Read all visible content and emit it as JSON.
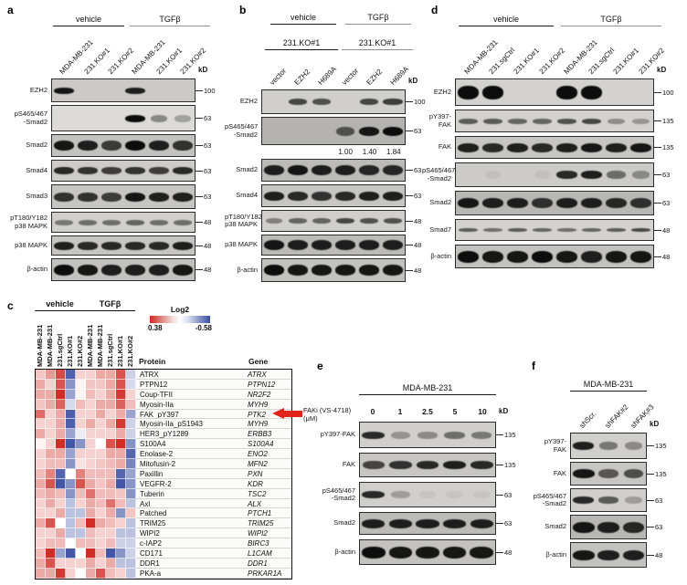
{
  "accent": {
    "arrow_color": "#e1251b"
  },
  "panels": {
    "a": {
      "letter": "a",
      "kd": "kD",
      "groups": [
        "vehicle",
        "TGFβ"
      ],
      "lanes": [
        "MDA-MB-231",
        "231.KO#1",
        "231.KO#2",
        "MDA-MB-231",
        "231.KO#1",
        "231.KO#2"
      ],
      "rows": [
        {
          "protein": "EZH2",
          "mw": "100",
          "bands": [
            0.95,
            0,
            0,
            0.9,
            0,
            0
          ]
        },
        {
          "protein": "pS465/467\n-Smad2",
          "mw": "63",
          "bands": [
            0,
            0,
            0,
            1,
            0.4,
            0.28
          ]
        },
        {
          "protein": "Smad2",
          "mw": "63",
          "bands": [
            0.95,
            0.9,
            0.75,
            1,
            0.9,
            0.8
          ]
        },
        {
          "protein": "Smad4",
          "mw": "63",
          "bands": [
            0.85,
            0.8,
            0.75,
            0.8,
            0.75,
            0.85
          ]
        },
        {
          "protein": "Smad3",
          "mw": "63",
          "bands": [
            0.8,
            0.8,
            0.75,
            0.95,
            0.9,
            0.9
          ]
        },
        {
          "protein": "pT180/Y182\np38 MAPK",
          "mw": "48",
          "bands": [
            0.45,
            0.5,
            0.5,
            0.55,
            0.5,
            0.5
          ]
        },
        {
          "protein": "p38 MAPK",
          "mw": "48",
          "bands": [
            0.9,
            0.85,
            0.85,
            0.85,
            0.85,
            0.9
          ]
        },
        {
          "protein": "β-actin",
          "mw": "48",
          "bands": [
            1,
            0.95,
            0.9,
            0.9,
            0.9,
            0.95
          ]
        }
      ]
    },
    "b": {
      "letter": "b",
      "kd": "kD",
      "groups": [
        "vehicle",
        "TGFβ"
      ],
      "subgroups": [
        "231.KO#1",
        "231.KO#1"
      ],
      "lanes": [
        "vector",
        "EZH2",
        "H689A",
        "vector",
        "EZH2",
        "H689A"
      ],
      "rows": [
        {
          "protein": "EZH2",
          "mw": "100",
          "bands": [
            0,
            0.7,
            0.65,
            0,
            0.7,
            0.75
          ]
        },
        {
          "protein": "pS465/467\n-Smad2",
          "mw": "63",
          "bands": [
            0,
            0,
            0,
            0.6,
            0.95,
            1
          ],
          "quant": [
            "",
            "",
            "",
            "1.00",
            "1.40",
            "1.84"
          ]
        },
        {
          "protein": "Smad2",
          "mw": "63",
          "bands": [
            0.9,
            0.95,
            0.9,
            0.9,
            0.85,
            0.85
          ]
        },
        {
          "protein": "Smad4",
          "mw": "63",
          "bands": [
            0.9,
            0.85,
            0.8,
            0.85,
            0.9,
            0.9
          ]
        },
        {
          "protein": "pT180/Y182\np38 MAPK",
          "mw": "48",
          "bands": [
            0.4,
            0.55,
            0.55,
            0.7,
            0.65,
            0.65
          ]
        },
        {
          "protein": "p38 MAPK",
          "mw": "48",
          "bands": [
            0.95,
            0.9,
            0.9,
            0.9,
            0.9,
            0.9
          ]
        },
        {
          "protein": "β-actin",
          "mw": "48",
          "bands": [
            1,
            0.95,
            0.95,
            0.95,
            0.95,
            0.95
          ]
        }
      ]
    },
    "d": {
      "letter": "d",
      "kd": "kD",
      "groups": [
        "vehicle",
        "TGFβ"
      ],
      "lanes": [
        "MDA-MB-231",
        "231.sgCtrl",
        "231.KO#1",
        "231.KO#2",
        "MDA-MB-231",
        "231.sgCtrl",
        "231.KO#1",
        "231.KO#2"
      ],
      "rows": [
        {
          "protein": "EZH2",
          "mw": "100",
          "bands": [
            1,
            1,
            0,
            0,
            1,
            1,
            0,
            0
          ]
        },
        {
          "protein": "pY397-FAK",
          "mw": "135",
          "bands": [
            0.6,
            0.6,
            0.55,
            0.55,
            0.65,
            0.7,
            0.35,
            0.3
          ]
        },
        {
          "protein": "FAK",
          "mw": "135",
          "bands": [
            0.9,
            0.85,
            0.9,
            0.85,
            0.9,
            0.95,
            0.9,
            0.95
          ]
        },
        {
          "protein": "pS465/467\n-Smad2",
          "mw": "63",
          "bands": [
            0,
            0.05,
            0,
            0.05,
            0.85,
            0.9,
            0.5,
            0.35
          ]
        },
        {
          "protein": "Smad2",
          "mw": "63",
          "bands": [
            0.95,
            0.9,
            0.9,
            0.8,
            0.9,
            0.9,
            0.85,
            0.8
          ]
        },
        {
          "protein": "Smad7",
          "mw": "48",
          "bands": [
            0.6,
            0.5,
            0.6,
            0.55,
            0.5,
            0.55,
            0.6,
            0.7
          ]
        },
        {
          "protein": "β-actin",
          "mw": "48",
          "bands": [
            1,
            0.95,
            0.95,
            1,
            0.95,
            0.9,
            0.95,
            0.95
          ]
        }
      ]
    },
    "e": {
      "letter": "e",
      "kd": "kD",
      "header": "MDA-MB-231",
      "treatment_label": "FAKi (VS-4718)\n(μM)",
      "doses": [
        "0",
        "1",
        "2.5",
        "5",
        "10"
      ],
      "rows": [
        {
          "protein": "pY397-FAK",
          "mw": "135",
          "bands": [
            0.85,
            0.3,
            0.35,
            0.5,
            0.45
          ]
        },
        {
          "protein": "FAK",
          "mw": "135",
          "bands": [
            0.7,
            0.8,
            0.85,
            0.9,
            0.85
          ]
        },
        {
          "protein": "pS465/467\n-Smad2",
          "mw": "63",
          "bands": [
            0.85,
            0.25,
            0.05,
            0.05,
            0.05
          ]
        },
        {
          "protein": "Smad2",
          "mw": "63",
          "bands": [
            0.9,
            0.9,
            0.9,
            0.9,
            0.9
          ]
        },
        {
          "protein": "β-actin",
          "mw": "48",
          "bands": [
            1,
            0.95,
            0.95,
            0.95,
            0.95
          ]
        }
      ]
    },
    "f": {
      "letter": "f",
      "kd": "kD",
      "header": "MDA-MB-231",
      "lanes": [
        "shScr.",
        "shFAK#2",
        "shFAK#3"
      ],
      "rows": [
        {
          "protein": "pY397-FAK",
          "mw": "135",
          "bands": [
            0.9,
            0.45,
            0.35
          ]
        },
        {
          "protein": "FAK",
          "mw": "135",
          "bands": [
            0.95,
            0.6,
            0.65
          ]
        },
        {
          "protein": "pS465/467\n-Smad2",
          "mw": "63",
          "bands": [
            0.85,
            0.6,
            0.25
          ]
        },
        {
          "protein": "Smad2",
          "mw": "63",
          "bands": [
            0.95,
            0.9,
            0.85
          ]
        },
        {
          "protein": "β-actin",
          "mw": "48",
          "bands": [
            0.95,
            0.9,
            0.9
          ]
        }
      ]
    }
  },
  "chart_data": {
    "type": "heatmap",
    "letter": "c",
    "title": "RPPA protein heatmap, vehicle vs TGFβ",
    "colorbar": {
      "label": "Log2",
      "max_label": "0.38",
      "min_label": "-0.58",
      "max_color": "#d02720",
      "min_color": "#3a4da1",
      "max": 0.38,
      "min": -0.58
    },
    "column_groups": [
      {
        "label": "vehicle",
        "span": 5
      },
      {
        "label": "TGFβ",
        "span": 5
      }
    ],
    "columns": [
      "MDA-MB-231",
      "MDA-MB-231",
      "231.sgCtrl",
      "231.KO#1",
      "231.KO#2",
      "MDA-MB-231",
      "MDA-MB-231",
      "231.sgCtrl",
      "231.KO#1",
      "231.KO#2"
    ],
    "header": {
      "protein": "Protein",
      "gene": "Gene"
    },
    "highlighted_row": "FAK_pY397",
    "rows": [
      {
        "protein": "ATRX",
        "gene": "ATRX",
        "values": [
          0.1,
          0.18,
          0.32,
          -0.52,
          0.08,
          0.08,
          0.15,
          0.15,
          0.3,
          -0.15
        ]
      },
      {
        "protein": "PTPN12",
        "gene": "PTPN12",
        "values": [
          0.15,
          0.08,
          0.3,
          -0.35,
          0.02,
          0.1,
          0.1,
          0.15,
          0.3,
          -0.12
        ]
      },
      {
        "protein": "Coup-TFII",
        "gene": "NR2F2",
        "values": [
          0.15,
          0.15,
          0.37,
          -0.3,
          0.02,
          0.12,
          0.08,
          0.15,
          0.35,
          0.08
        ]
      },
      {
        "protein": "Myosin-IIa",
        "gene": "MYH9",
        "values": [
          0.1,
          0.15,
          0.28,
          -0.12,
          0.12,
          0.08,
          0.15,
          0.15,
          0.28,
          0.12
        ]
      },
      {
        "protein": "FAK_pY397",
        "gene": "PTK2",
        "values": [
          0.26,
          0.08,
          0.15,
          -0.52,
          0.08,
          0.08,
          0.15,
          0.08,
          0.15,
          -0.3
        ]
      },
      {
        "protein": "Myosin-IIa_pS1943",
        "gene": "MYH9",
        "values": [
          0.08,
          0.08,
          0.15,
          -0.52,
          0.08,
          0.15,
          0.08,
          0.15,
          0.35,
          -0.15
        ]
      },
      {
        "protein": "HER3_pY1289",
        "gene": "ERBB3",
        "values": [
          0.15,
          0.08,
          0.15,
          -0.3,
          -0.06,
          0.08,
          0.08,
          0.08,
          0.15,
          -0.15
        ]
      },
      {
        "protein": "S100A4",
        "gene": "S100A4",
        "values": [
          0.02,
          0.08,
          0.37,
          -0.55,
          -0.35,
          0.08,
          0.0,
          0.3,
          0.37,
          -0.35
        ]
      },
      {
        "protein": "Enolase-2",
        "gene": "ENO2",
        "values": [
          0.08,
          0.15,
          0.15,
          -0.3,
          0.08,
          0.08,
          0.08,
          0.15,
          0.15,
          -0.5
        ]
      },
      {
        "protein": "Mitofusin-2",
        "gene": "MFN2",
        "values": [
          0.08,
          0.12,
          0.12,
          -0.35,
          0.05,
          0.08,
          0.1,
          0.12,
          0.15,
          -0.4
        ]
      },
      {
        "protein": "Paxillin",
        "gene": "PXN",
        "values": [
          0.12,
          0.22,
          -0.5,
          0.0,
          0.22,
          0.12,
          0.12,
          0.12,
          -0.5,
          -0.3
        ]
      },
      {
        "protein": "VEGFR-2",
        "gene": "KDR",
        "values": [
          0.15,
          0.3,
          -0.55,
          -0.35,
          0.3,
          0.15,
          0.1,
          0.15,
          -0.55,
          -0.35
        ]
      },
      {
        "protein": "Tuberin",
        "gene": "TSC2",
        "values": [
          0.12,
          0.15,
          0.12,
          -0.35,
          0.12,
          0.25,
          0.12,
          0.12,
          0.1,
          -0.35
        ]
      },
      {
        "protein": "Axl",
        "gene": "ALX",
        "values": [
          0.08,
          0.15,
          0.08,
          -0.2,
          0.08,
          0.15,
          0.12,
          0.25,
          0.12,
          -0.2
        ]
      },
      {
        "protein": "Patched",
        "gene": "PTCH1",
        "values": [
          0.08,
          0.08,
          0.15,
          -0.2,
          -0.2,
          0.15,
          0.08,
          0.15,
          -0.35,
          0.1
        ]
      },
      {
        "protein": "TRIM25",
        "gene": "TRIM25",
        "values": [
          0.15,
          0.3,
          0.0,
          -0.2,
          0.12,
          0.37,
          0.15,
          0.12,
          0.08,
          -0.2
        ]
      },
      {
        "protein": "WIPI2",
        "gene": "WIPI2",
        "values": [
          0.08,
          0.08,
          0.15,
          -0.2,
          -0.2,
          0.12,
          0.08,
          0.08,
          -0.2,
          -0.2
        ]
      },
      {
        "protein": "c-IAP2",
        "gene": "BIRC3",
        "values": [
          0.08,
          0.12,
          0.12,
          0.0,
          0.12,
          0.12,
          0.08,
          0.12,
          -0.15,
          -0.15
        ]
      },
      {
        "protein": "CD171",
        "gene": "L1CAM",
        "values": [
          0.12,
          0.37,
          -0.3,
          -0.55,
          0.0,
          0.37,
          0.12,
          -0.55,
          -0.35,
          -0.15
        ]
      },
      {
        "protein": "DDR1",
        "gene": "DDR1",
        "values": [
          0.15,
          0.3,
          0.08,
          0.08,
          0.08,
          0.15,
          0.08,
          0.15,
          -0.2,
          -0.2
        ]
      },
      {
        "protein": "PKA-a",
        "gene": "PRKAR1A",
        "values": [
          0.15,
          0.15,
          0.35,
          0.08,
          0.0,
          0.15,
          0.3,
          0.12,
          0.08,
          -0.2
        ]
      }
    ]
  }
}
